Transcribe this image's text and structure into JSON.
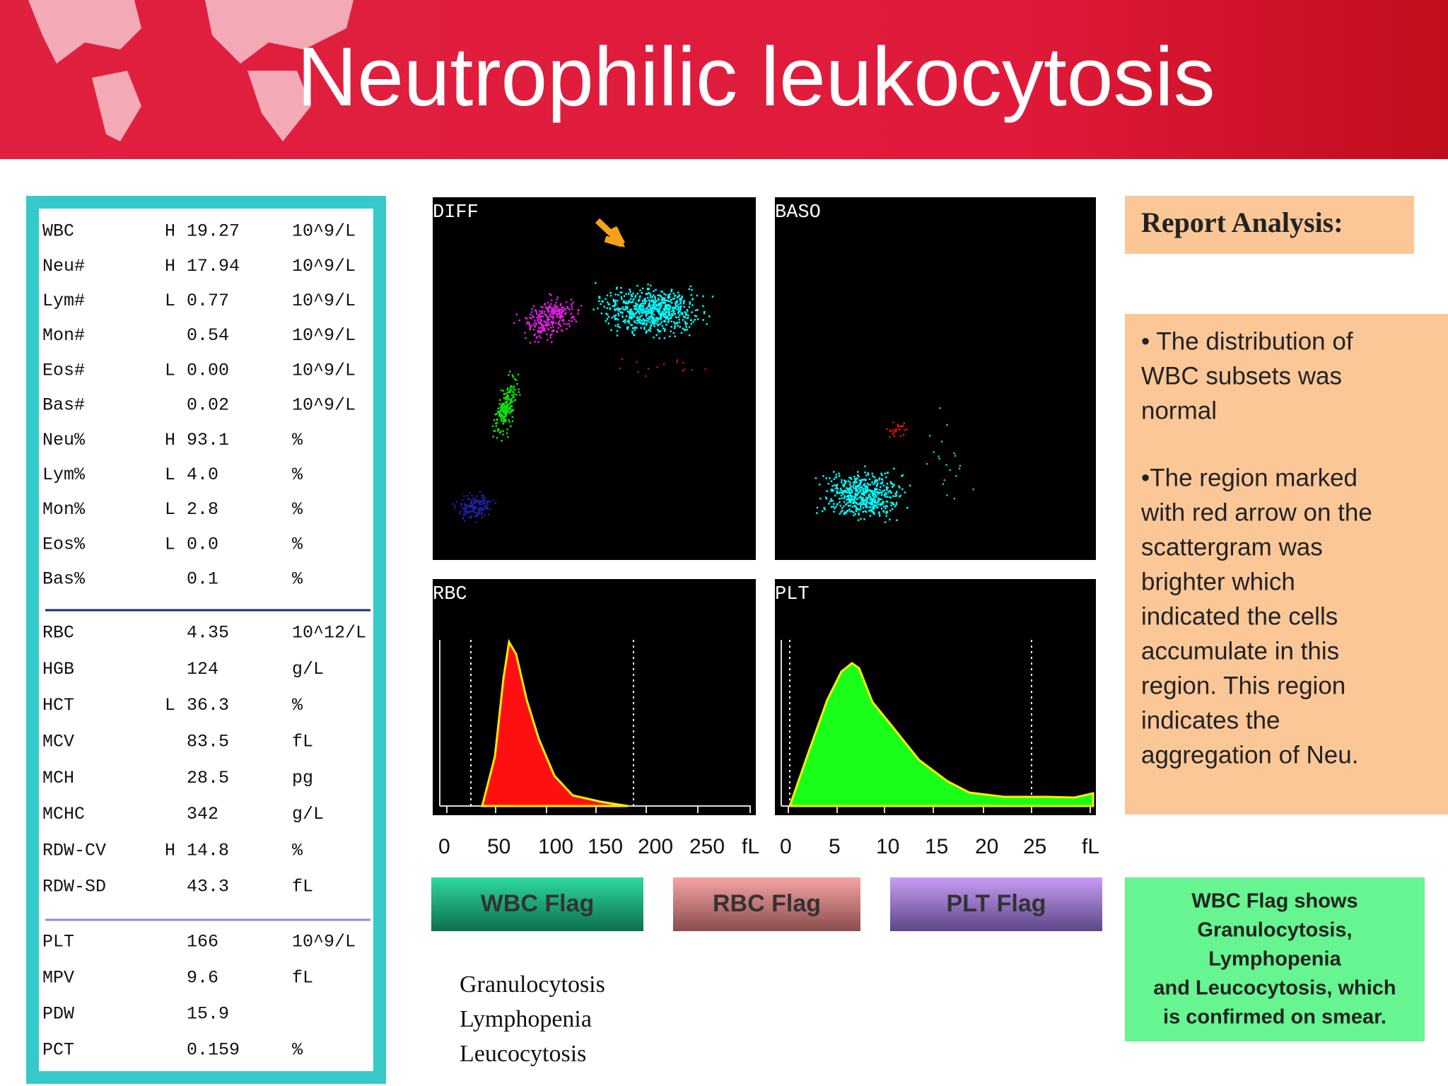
{
  "header": {
    "title": "Neutrophilic leukocytosis"
  },
  "table": {
    "sections": [
      [
        {
          "name": "WBC",
          "flag": "H",
          "value": "19.27",
          "unit": "10^9/L"
        },
        {
          "name": "Neu#",
          "flag": "H",
          "value": "17.94",
          "unit": "10^9/L"
        },
        {
          "name": "Lym#",
          "flag": "L",
          "value": "0.77",
          "unit": "10^9/L"
        },
        {
          "name": "Mon#",
          "value": "0.54",
          "unit": "10^9/L"
        },
        {
          "name": "Eos#",
          "flag": "L",
          "value": "0.00",
          "unit": "10^9/L"
        },
        {
          "name": "Bas#",
          "value": "0.02",
          "unit": "10^9/L"
        },
        {
          "name": "Neu%",
          "flag": "H",
          "value": "93.1",
          "unit": "%"
        },
        {
          "name": "Lym%",
          "flag": "L",
          "value": "4.0",
          "unit": "%"
        },
        {
          "name": "Mon%",
          "flag": "L",
          "value": "2.8",
          "unit": "%"
        },
        {
          "name": "Eos%",
          "flag": "L",
          "value": "0.0",
          "unit": "%"
        },
        {
          "name": "Bas%",
          "value": "0.1",
          "unit": "%"
        }
      ],
      [
        {
          "name": "RBC",
          "value": "4.35",
          "unit": "10^12/L"
        },
        {
          "name": "HGB",
          "value": "124",
          "unit": "g/L"
        },
        {
          "name": "HCT",
          "flag": "L",
          "value": "36.3",
          "unit": "%"
        },
        {
          "name": "MCV",
          "value": "83.5",
          "unit": "fL"
        },
        {
          "name": "MCH",
          "value": "28.5",
          "unit": "pg"
        },
        {
          "name": "MCHC",
          "value": "342",
          "unit": "g/L"
        },
        {
          "name": "RDW-CV",
          "flag": "H",
          "value": "14.8",
          "unit": "%"
        },
        {
          "name": "RDW-SD",
          "value": "43.3",
          "unit": "fL"
        }
      ],
      [
        {
          "name": "PLT",
          "value": "166",
          "unit": "10^9/L"
        },
        {
          "name": "MPV",
          "value": "9.6",
          "unit": "fL"
        },
        {
          "name": "PDW",
          "value": "15.9"
        },
        {
          "name": "PCT",
          "value": "0.159",
          "unit": "%"
        }
      ]
    ]
  },
  "plots": {
    "diff": {
      "label": "DIFF"
    },
    "baso": {
      "label": "BASO"
    },
    "rbc": {
      "label": "RBC",
      "ticks": [
        "0",
        "50",
        "100",
        "150",
        "200",
        "250",
        "fL"
      ]
    },
    "plt": {
      "label": "PLT",
      "ticks": [
        "0",
        "5",
        "10",
        "15",
        "20",
        "25",
        "fL"
      ]
    }
  },
  "buttons": [
    "WBC Flag",
    "RBC Flag",
    "PLT Flag"
  ],
  "flags": [
    "Granulocytosis",
    "Lymphopenia",
    "Leucocytosis"
  ],
  "report": {
    "title": "Report Analysis:",
    "paragraphs": [
      [
        "• The distribution of",
        "WBC subsets was",
        "normal"
      ],
      [
        "•The region marked",
        "with red arrow on the",
        "scattergram was",
        "brighter which",
        "indicated the cells",
        "accumulate in this",
        "region. This region",
        "indicates the",
        "aggregation of Neu."
      ]
    ]
  },
  "note": {
    "lines": [
      "WBC Flag shows",
      "Granulocytosis,",
      "Lymphopenia",
      "and Leucocytosis, which",
      "is confirmed on smear."
    ]
  }
}
